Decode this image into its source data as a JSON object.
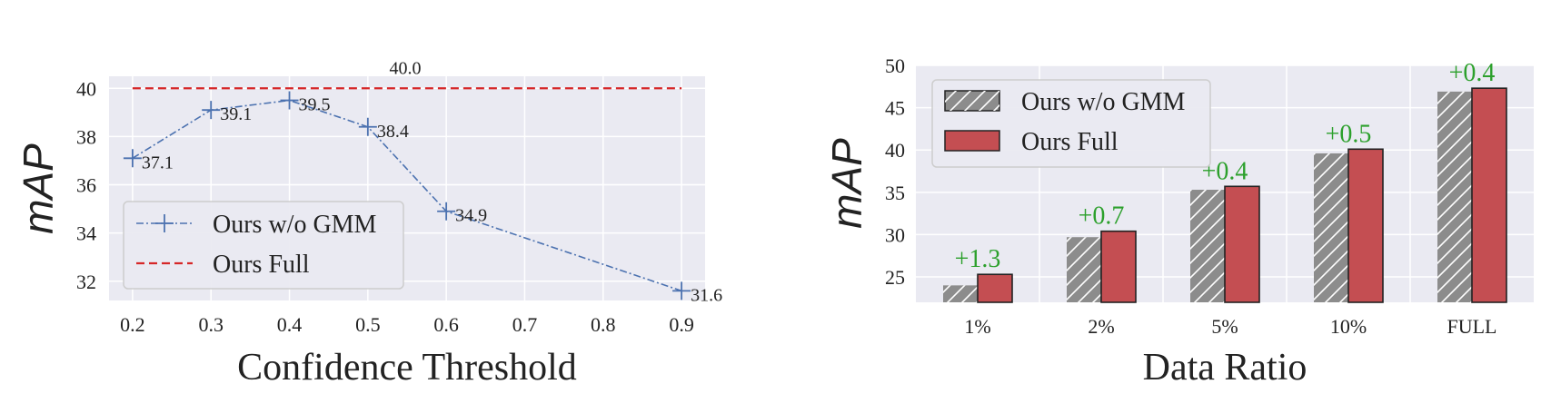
{
  "colors": {
    "plot_bg": "#eaeaf2",
    "grid": "#ffffff",
    "line": "#4c72b0",
    "full_line": "#d62728",
    "bar_full": "#c44e52",
    "bar_wo": "#8c8c8c",
    "increase_label": "#2ca02c"
  },
  "chart_data": [
    {
      "type": "line",
      "xlabel": "Confidence Threshold",
      "ylabel": "mAP",
      "xlim": [
        0.17,
        0.93
      ],
      "ylim": [
        31.2,
        40.5
      ],
      "xticks": [
        "0.2",
        "0.3",
        "0.4",
        "0.5",
        "0.6",
        "0.7",
        "0.8",
        "0.9"
      ],
      "yticks": [
        "32",
        "34",
        "36",
        "38",
        "40"
      ],
      "grid": true,
      "legend_position": "lower-left",
      "series": [
        {
          "name": "Ours w/o GMM",
          "x": [
            0.2,
            0.3,
            0.4,
            0.5,
            0.6,
            0.9
          ],
          "y": [
            37.1,
            39.1,
            39.5,
            38.4,
            34.9,
            31.6
          ],
          "labels": [
            "37.1",
            "39.1",
            "39.5",
            "38.4",
            "34.9",
            "31.6"
          ]
        },
        {
          "name": "Ours Full",
          "x": [
            0.2,
            0.9
          ],
          "y": [
            40.0,
            40.0
          ],
          "label": "40.0"
        }
      ]
    },
    {
      "type": "bar",
      "xlabel": "Data Ratio",
      "ylabel": "mAP",
      "ylim": [
        22,
        50
      ],
      "yticks": [
        "25",
        "30",
        "35",
        "40",
        "45",
        "50"
      ],
      "categories": [
        "1%",
        "2%",
        "5%",
        "10%",
        "FULL"
      ],
      "grid": true,
      "legend_position": "top-left",
      "series": [
        {
          "name": "Ours w/o GMM",
          "values": [
            24.0,
            29.7,
            35.3,
            39.6,
            46.9
          ]
        },
        {
          "name": "Ours Full",
          "values": [
            25.3,
            30.4,
            35.7,
            40.1,
            47.3
          ]
        }
      ],
      "annotations": [
        "+1.3",
        "+0.7",
        "+0.4",
        "+0.5",
        "+0.4"
      ]
    }
  ]
}
